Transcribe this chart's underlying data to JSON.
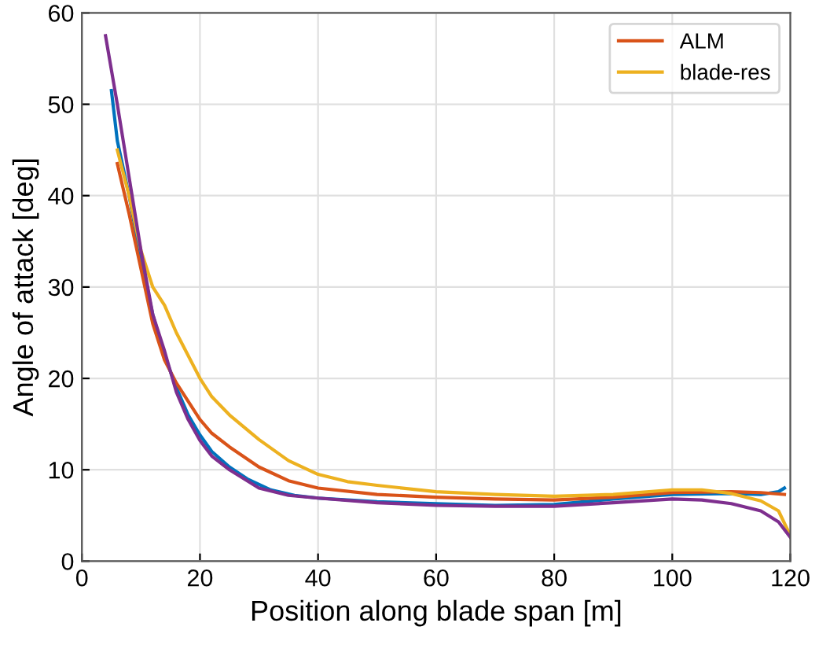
{
  "chart_data": {
    "type": "line",
    "xlabel": "Position along blade span [m]",
    "ylabel": "Angle of attack [deg]",
    "xlim": [
      0,
      120
    ],
    "ylim": [
      0,
      60
    ],
    "xticks": [
      0,
      20,
      40,
      60,
      80,
      100,
      120
    ],
    "yticks": [
      0,
      10,
      20,
      30,
      40,
      50,
      60
    ],
    "grid": true,
    "legend": "top right",
    "series": [
      {
        "color": "#0072bd",
        "x": [
          5,
          6,
          8,
          10,
          12,
          14,
          16,
          18,
          20,
          22,
          25,
          28,
          32,
          36,
          40,
          50,
          60,
          70,
          80,
          90,
          100,
          110,
          115,
          118,
          119
        ],
        "values": [
          51.5,
          46,
          40,
          33,
          27,
          22.5,
          19,
          16,
          13.8,
          12,
          10.3,
          9,
          7.8,
          7.2,
          6.9,
          6.5,
          6.3,
          6.1,
          6.2,
          6.8,
          7.3,
          7.4,
          7.3,
          7.6,
          8.0
        ]
      },
      {
        "name": "ALM",
        "color": "#d95319",
        "x": [
          6,
          8,
          10,
          12,
          14,
          16,
          18,
          20,
          22,
          25,
          30,
          35,
          40,
          50,
          60,
          70,
          80,
          90,
          100,
          110,
          115,
          119
        ],
        "values": [
          43.5,
          38,
          32,
          26,
          22,
          19.5,
          17.5,
          15.5,
          14,
          12.5,
          10.3,
          8.8,
          8.0,
          7.3,
          7.0,
          6.8,
          6.7,
          7.0,
          7.5,
          7.6,
          7.5,
          7.3
        ]
      },
      {
        "name": "blade-res",
        "color": "#edb120",
        "x": [
          6,
          8,
          10,
          12,
          14,
          16,
          18,
          20,
          22,
          25,
          30,
          35,
          40,
          45,
          50,
          60,
          70,
          80,
          90,
          100,
          105,
          110,
          115,
          118,
          120
        ],
        "values": [
          45,
          40,
          34,
          30,
          28,
          25,
          22.5,
          20,
          18,
          16,
          13.3,
          11,
          9.5,
          8.7,
          8.3,
          7.6,
          7.3,
          7.1,
          7.3,
          7.8,
          7.8,
          7.4,
          6.6,
          5.5,
          2.8
        ]
      },
      {
        "color": "#7e2f8e",
        "x": [
          4,
          6,
          8,
          10,
          12,
          14,
          16,
          18,
          20,
          22,
          25,
          30,
          35,
          40,
          50,
          60,
          70,
          80,
          90,
          100,
          105,
          110,
          115,
          118,
          120
        ],
        "values": [
          57.5,
          50,
          42,
          34,
          27,
          23,
          18.5,
          15.5,
          13.2,
          11.5,
          10,
          8,
          7.2,
          6.9,
          6.4,
          6.1,
          6.0,
          6.0,
          6.4,
          6.8,
          6.7,
          6.3,
          5.5,
          4.3,
          2.6
        ]
      }
    ]
  }
}
